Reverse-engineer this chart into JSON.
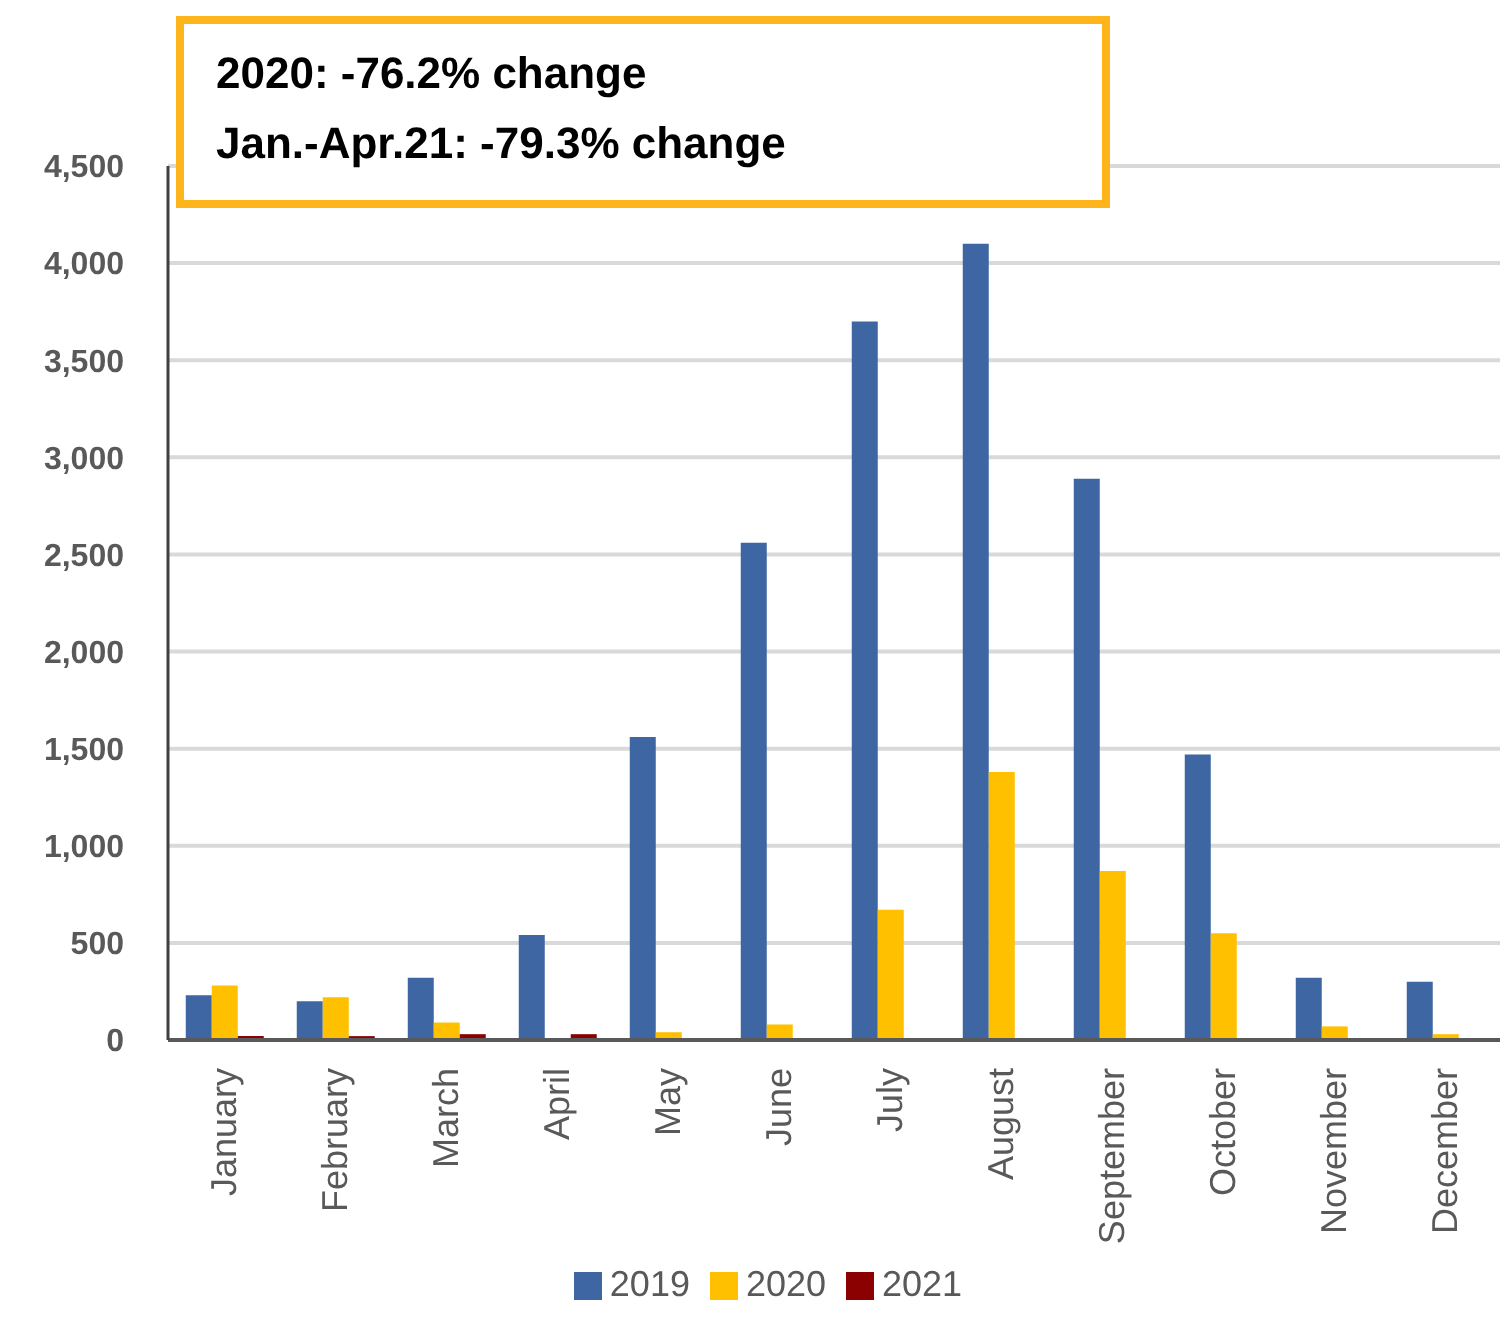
{
  "chart_data": {
    "type": "bar",
    "annotations": [
      "2020: -76.2% change",
      "Jan.-Apr.21: -79.3% change"
    ],
    "categories": [
      "January",
      "February",
      "March",
      "April",
      "May",
      "June",
      "July",
      "August",
      "September",
      "October",
      "November",
      "December"
    ],
    "series": [
      {
        "name": "2019",
        "color": "#3d66a3",
        "values": [
          230,
          200,
          320,
          540,
          1560,
          2560,
          3700,
          4100,
          2890,
          1470,
          320,
          300
        ]
      },
      {
        "name": "2020",
        "color": "#ffc000",
        "values": [
          280,
          220,
          90,
          0,
          40,
          80,
          670,
          1380,
          870,
          550,
          70,
          30
        ]
      },
      {
        "name": "2021",
        "color": "#8b0000",
        "values": [
          20,
          20,
          30,
          30,
          null,
          null,
          null,
          null,
          null,
          null,
          null,
          null
        ]
      }
    ],
    "ylim": [
      0,
      4500
    ],
    "yticks": [
      0,
      500,
      {
        "value": 1000,
        "label": "1,000"
      },
      {
        "value": 1500,
        "label": "1,500"
      },
      {
        "value": 2000,
        "label": "2,000"
      },
      {
        "value": 2500,
        "label": "2,500"
      },
      {
        "value": 3000,
        "label": "3,000"
      },
      {
        "value": 3500,
        "label": "3,500"
      },
      {
        "value": 4000,
        "label": "4,000"
      },
      {
        "value": 4500,
        "label": "4,500"
      }
    ],
    "grid": "y",
    "legend": "bottom"
  }
}
